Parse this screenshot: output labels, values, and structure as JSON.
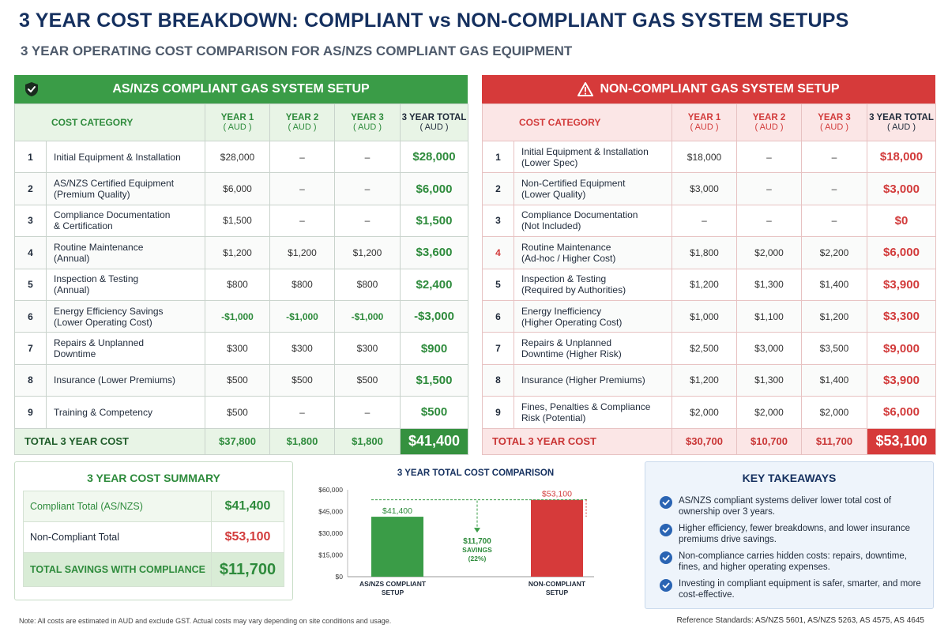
{
  "page": {
    "title": "3 YEAR COST BREAKDOWN: COMPLIANT vs NON-COMPLIANT GAS SYSTEM SETUPS",
    "subtitle": "3 YEAR OPERATING COST COMPARISON FOR AS/NZS COMPLIANT GAS EQUIPMENT",
    "note": "Note: All costs are estimated in AUD and exclude GST. Actual costs may vary depending on site conditions and usage.",
    "reference": "Reference Standards: AS/NZS 5601, AS/NZS 5263, AS 4575, AS 4645"
  },
  "colors": {
    "green": "#3a9c47",
    "red": "#d63a3a",
    "navy": "#15305f"
  },
  "icons": {
    "compliant": "shield-check-icon",
    "non_compliant": "warning-triangle-icon",
    "takeaway": "check-circle-icon"
  },
  "headers": {
    "cost_category": "COST CATEGORY",
    "year1": "YEAR 1",
    "year2": "YEAR 2",
    "year3": "YEAR 3",
    "total": "3 YEAR TOTAL",
    "currency": "( AUD )"
  },
  "compliant": {
    "title": "AS/NZS COMPLIANT GAS SYSTEM SETUP",
    "rows": [
      {
        "n": "1",
        "l1": "Initial Equipment & Installation",
        "l2": "",
        "y1": "$28,000",
        "y2": "–",
        "y3": "–",
        "t": "$28,000"
      },
      {
        "n": "2",
        "l1": "AS/NZS Certified Equipment",
        "l2": "(Premium Quality)",
        "y1": "$6,000",
        "y2": "–",
        "y3": "–",
        "t": "$6,000"
      },
      {
        "n": "3",
        "l1": "Compliance Documentation",
        "l2": "& Certification",
        "y1": "$1,500",
        "y2": "–",
        "y3": "–",
        "t": "$1,500"
      },
      {
        "n": "4",
        "l1": "Routine Maintenance",
        "l2": "(Annual)",
        "y1": "$1,200",
        "y2": "$1,200",
        "y3": "$1,200",
        "t": "$3,600"
      },
      {
        "n": "5",
        "l1": "Inspection & Testing",
        "l2": "(Annual)",
        "y1": "$800",
        "y2": "$800",
        "y3": "$800",
        "t": "$2,400"
      },
      {
        "n": "6",
        "l1": "Energy Efficiency Savings",
        "l2": "(Lower Operating Cost)",
        "y1": "-$1,000",
        "y2": "-$1,000",
        "y3": "-$1,000",
        "t": "-$3,000"
      },
      {
        "n": "7",
        "l1": "Repairs & Unplanned",
        "l2": "Downtime",
        "y1": "$300",
        "y2": "$300",
        "y3": "$300",
        "t": "$900"
      },
      {
        "n": "8",
        "l1": "Insurance (Lower Premiums)",
        "l2": "",
        "y1": "$500",
        "y2": "$500",
        "y3": "$500",
        "t": "$1,500"
      },
      {
        "n": "9",
        "l1": "Training & Competency",
        "l2": "",
        "y1": "$500",
        "y2": "–",
        "y3": "–",
        "t": "$500"
      }
    ],
    "total": {
      "label": "TOTAL 3 YEAR COST",
      "y1": "$37,800",
      "y2": "$1,800",
      "y3": "$1,800",
      "t": "$41,400"
    }
  },
  "non_compliant": {
    "title": "NON-COMPLIANT GAS SYSTEM SETUP",
    "rows": [
      {
        "n": "1",
        "l1": "Initial Equipment & Installation",
        "l2": "(Lower Spec)",
        "y1": "$18,000",
        "y2": "–",
        "y3": "–",
        "t": "$18,000"
      },
      {
        "n": "2",
        "l1": "Non-Certified Equipment",
        "l2": "(Lower Quality)",
        "y1": "$3,000",
        "y2": "–",
        "y3": "–",
        "t": "$3,000"
      },
      {
        "n": "3",
        "l1": "Compliance Documentation",
        "l2": "(Not Included)",
        "y1": "–",
        "y2": "–",
        "y3": "–",
        "t": "$0"
      },
      {
        "n": "4",
        "l1": "Routine Maintenance",
        "l2": "(Ad-hoc / Higher Cost)",
        "y1": "$1,800",
        "y2": "$2,000",
        "y3": "$2,200",
        "t": "$6,000"
      },
      {
        "n": "5",
        "l1": "Inspection & Testing",
        "l2": "(Required by Authorities)",
        "y1": "$1,200",
        "y2": "$1,300",
        "y3": "$1,400",
        "t": "$3,900"
      },
      {
        "n": "6",
        "l1": "Energy Inefficiency",
        "l2": "(Higher Operating Cost)",
        "y1": "$1,000",
        "y2": "$1,100",
        "y3": "$1,200",
        "t": "$3,300"
      },
      {
        "n": "7",
        "l1": "Repairs & Unplanned",
        "l2": "Downtime (Higher Risk)",
        "y1": "$2,500",
        "y2": "$3,000",
        "y3": "$3,500",
        "t": "$9,000"
      },
      {
        "n": "8",
        "l1": "Insurance (Higher Premiums)",
        "l2": "",
        "y1": "$1,200",
        "y2": "$1,300",
        "y3": "$1,400",
        "t": "$3,900"
      },
      {
        "n": "9",
        "l1": "Fines, Penalties & Compliance",
        "l2": "Risk (Potential)",
        "y1": "$2,000",
        "y2": "$2,000",
        "y3": "$2,000",
        "t": "$6,000"
      }
    ],
    "total": {
      "label": "TOTAL 3 YEAR COST",
      "y1": "$30,700",
      "y2": "$10,700",
      "y3": "$11,700",
      "t": "$53,100"
    }
  },
  "summary": {
    "title": "3 YEAR COST SUMMARY",
    "compliant_label": "Compliant Total (AS/NZS)",
    "compliant_value": "$41,400",
    "non_compliant_label": "Non-Compliant Total",
    "non_compliant_value": "$53,100",
    "savings_label": "TOTAL SAVINGS WITH COMPLIANCE",
    "savings_value": "$11,700"
  },
  "takeaways": {
    "title": "KEY TAKEAWAYS",
    "items": [
      "AS/NZS compliant systems deliver lower total cost of ownership over 3 years.",
      "Higher efficiency, fewer breakdowns, and lower insurance premiums drive savings.",
      "Non-compliance carries hidden costs: repairs, downtime, fines, and higher operating expenses.",
      "Investing in compliant equipment is safer, smarter, and more cost-effective."
    ]
  },
  "chart_data": {
    "type": "bar",
    "title": "3 YEAR TOTAL COST COMPARISON",
    "categories": [
      "AS/NZS COMPLIANT SETUP",
      "NON-COMPLIANT SETUP"
    ],
    "values": [
      41400,
      53100
    ],
    "value_labels": [
      "$41,400",
      "$53,100"
    ],
    "bar_colors": [
      "#3a9c47",
      "#d63a3a"
    ],
    "yticks": [
      0,
      15000,
      30000,
      45000,
      60000
    ],
    "ytick_labels": [
      "$0",
      "$15,000",
      "$30,000",
      "$45,000",
      "$60,000"
    ],
    "ylim": [
      0,
      60000
    ],
    "savings_label": "$11,700",
    "savings_word": "SAVINGS",
    "savings_pct": "(22%)",
    "grid": false
  }
}
